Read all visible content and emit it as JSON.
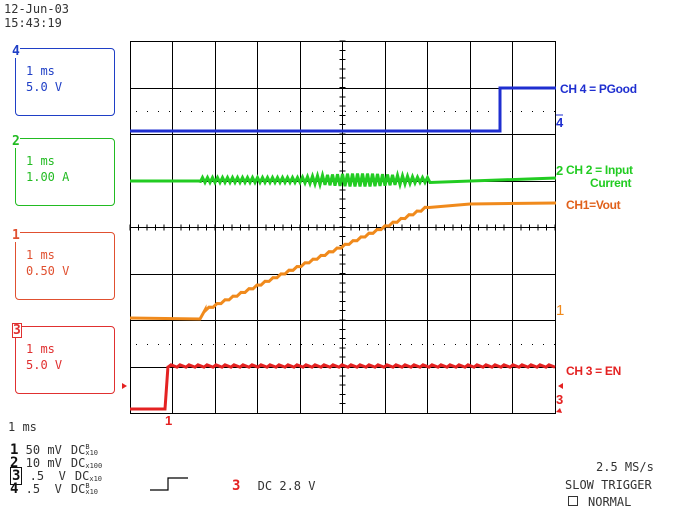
{
  "header": {
    "date": "12-Jun-03",
    "time": "15:43:19"
  },
  "channels": [
    {
      "num": "4",
      "time": "1 ms",
      "scale": "5.0 V",
      "color": "#1f3fc6"
    },
    {
      "num": "2",
      "time": "1 ms",
      "scale": "1.00 A",
      "color": "#22bb22"
    },
    {
      "num": "1",
      "time": "1 ms",
      "scale": "0.50 V",
      "color": "#e05030"
    },
    {
      "num": "3",
      "time": "1 ms",
      "scale": "5.0 V",
      "color": "#e03030"
    }
  ],
  "trace_labels": {
    "ch4": "CH 4 = PGood",
    "ch2_line1": "CH 2 = Input",
    "ch2_line2": "Current",
    "ch1": "CH1=Vout",
    "ch3": "CH 3 = EN"
  },
  "marker_labels": {
    "m4": "4",
    "m2": "2",
    "m1": "1",
    "m3": "3",
    "trig": "1"
  },
  "timebase": "1 ms",
  "channel_settings": [
    {
      "num": "1",
      "volts": "50 mV",
      "coupling": "DC",
      "sup": "B",
      "sub": "x10"
    },
    {
      "num": "2",
      "volts": "10 mV",
      "coupling": "DC",
      "sup": "",
      "sub": "x100"
    },
    {
      "num": "3",
      "volts": ".5  V",
      "coupling": "DC",
      "sup": "",
      "sub": "x10"
    },
    {
      "num": "4",
      "volts": ".5  V",
      "coupling": "DC",
      "sup": "B",
      "sub": "x10"
    }
  ],
  "trigger": {
    "channel": "3",
    "text": "DC 2.8 V"
  },
  "acquisition": {
    "rate": "2.5 MS/s",
    "mode": "SLOW TRIGGER",
    "type": "NORMAL"
  },
  "colors": {
    "ch1": "#f08a1c",
    "ch2": "#22cc22",
    "ch3": "#e42222",
    "ch4": "#1f2fd0",
    "grid": "#000000"
  }
}
